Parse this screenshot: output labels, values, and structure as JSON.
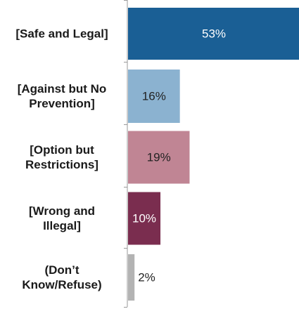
{
  "chart_data": {
    "type": "bar",
    "orientation": "horizontal",
    "categories": [
      [
        "[Safe and Legal]"
      ],
      [
        "[Against but No",
        "Prevention]"
      ],
      [
        "[Option but",
        "Restrictions]"
      ],
      [
        "[Wrong and",
        "Illegal]"
      ],
      [
        "(Don’t",
        "Know/Refuse)"
      ]
    ],
    "values": [
      53,
      16,
      19,
      10,
      2
    ],
    "value_labels": [
      "53%",
      "16%",
      "19%",
      "10%",
      "2%"
    ],
    "colors": [
      "#1a5f95",
      "#8bb2d0",
      "#c08594",
      "#7a2d4f",
      "#b3b3b3"
    ],
    "value_label_colors": [
      "#ffffff",
      "#222222",
      "#222222",
      "#ffffff",
      "#222222"
    ],
    "value_label_position": [
      "inside",
      "inside",
      "inside",
      "inside",
      "outside"
    ],
    "xlim": [
      0,
      53
    ],
    "title": "",
    "xlabel": "",
    "ylabel": "",
    "grid": false,
    "legend": "none"
  }
}
